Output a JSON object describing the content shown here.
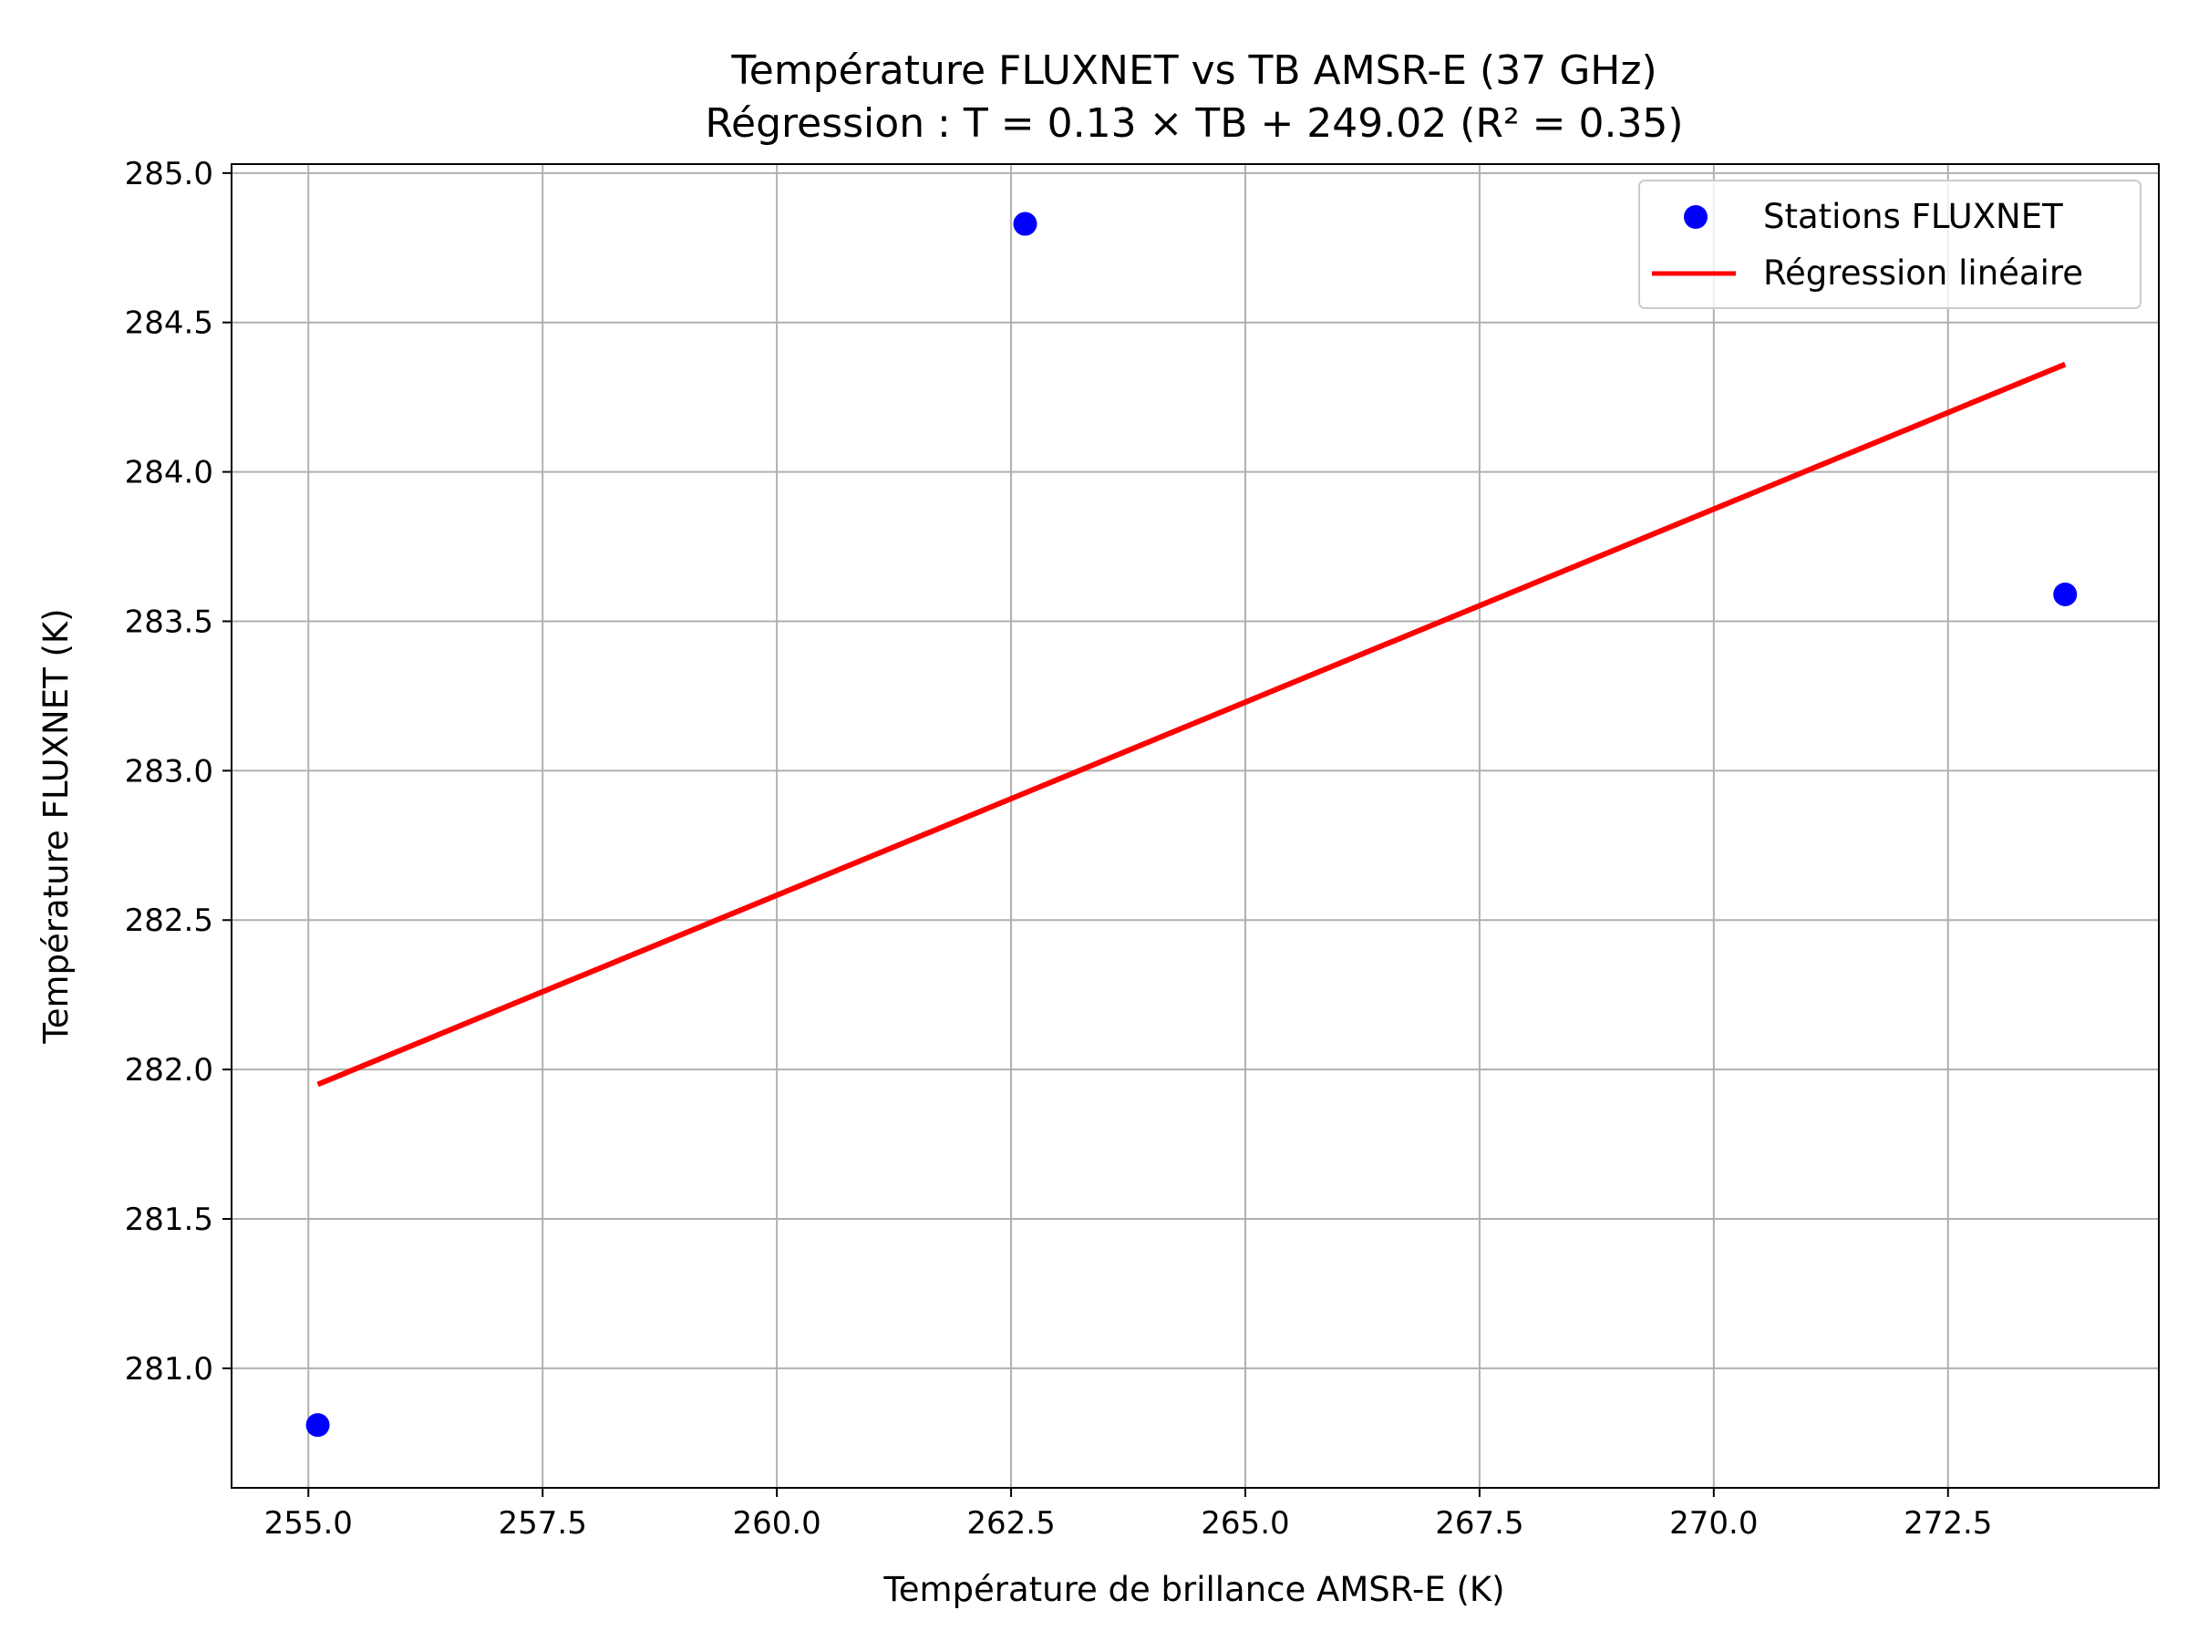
{
  "chart_data": {
    "type": "scatter",
    "title": "Température FLUXNET vs TB AMSR-E (37 GHz)",
    "subtitle": "Régression : T = 0.13 × TB + 249.02 (R² = 0.35)",
    "xlabel": "Température de brillance AMSR-E (K)",
    "ylabel": "Température FLUXNET (K)",
    "xlim": [
      254.18,
      274.75
    ],
    "ylim": [
      280.6,
      285.03
    ],
    "x_ticks": [
      255.0,
      257.5,
      260.0,
      262.5,
      265.0,
      267.5,
      270.0,
      272.5
    ],
    "x_tick_labels": [
      "255.0",
      "257.5",
      "260.0",
      "262.5",
      "265.0",
      "267.5",
      "270.0",
      "272.5"
    ],
    "y_ticks": [
      281.0,
      281.5,
      282.0,
      282.5,
      283.0,
      283.5,
      284.0,
      284.5,
      285.0
    ],
    "y_tick_labels": [
      "281.0",
      "281.5",
      "282.0",
      "282.5",
      "283.0",
      "283.5",
      "284.0",
      "284.5",
      "285.0"
    ],
    "grid": true,
    "legend_position": "top-right",
    "series": [
      {
        "name": "Stations FLUXNET",
        "type": "scatter",
        "color": "#0000ff",
        "x": [
          255.1,
          262.65,
          273.75
        ],
        "y": [
          280.81,
          284.83,
          283.59
        ]
      },
      {
        "name": "Régression linéaire",
        "type": "line",
        "color": "#ff0000",
        "x": [
          255.1,
          273.75
        ],
        "y": [
          281.95,
          284.36
        ]
      }
    ]
  }
}
